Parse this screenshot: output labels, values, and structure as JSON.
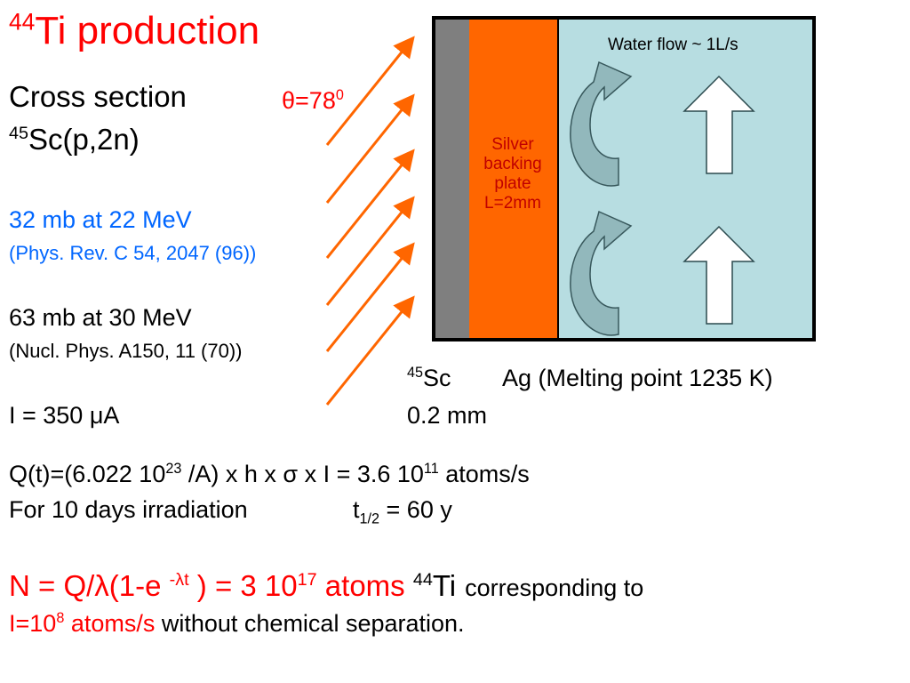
{
  "title": {
    "sup": "44",
    "text": "Ti production"
  },
  "cross_section": "Cross section",
  "reaction": {
    "sup": "45",
    "text": "Sc(p,2n)"
  },
  "angle": {
    "symbol": "θ",
    "text": "=78",
    "sup": "0"
  },
  "measurement1": {
    "value": "32 mb  at 22 MeV",
    "ref": "(Phys. Rev. C 54, 2047 (96))"
  },
  "measurement2": {
    "value": "63 mb  at 30 MeV",
    "ref": "(Nucl. Phys. A150, 11 (70))"
  },
  "current": {
    "prefix": "I = 350 ",
    "unit": "μA"
  },
  "target": {
    "water_label": "Water flow ~ 1L/s",
    "plate_lines": [
      "Silver",
      "backing",
      "plate",
      "L=2mm"
    ],
    "sc_sup": "45",
    "sc_text": "Sc",
    "ag_text": "Ag (Melting point 1235 K)",
    "thickness": "0.2 mm"
  },
  "production_rate": {
    "part1": "Q(t)=(6.022 10",
    "exp1": "23",
    "part2": " /A) x h x ",
    "sigma": "σ",
    "part3": " x I = 3.6 10",
    "exp2": "11",
    "part4": " atoms/s"
  },
  "irradiation": {
    "text": "For 10 days  irradiation",
    "half_prefix": "t",
    "half_sub": "1/2",
    "half_value": " = 60 y"
  },
  "result": {
    "part1": "N = Q/",
    "lambda": "λ",
    "part2": "(1-e ",
    "exp": "-λt",
    "part3": " ) = 3 10",
    "exp2": "17",
    "part4": "  atoms ",
    "ti_sup": "44",
    "ti_text": "Ti",
    "corresponding": "corresponding to"
  },
  "intensity": {
    "prefix": "I=10",
    "exp": "8",
    "red_text": " atoms/s",
    "black_text": " without chemical separation."
  },
  "colors": {
    "title_red": "#ff0000",
    "ref_blue": "#0066ff",
    "beam_orange": "#ff6600",
    "scandium_gray": "#7f7f7f",
    "silver_orange": "#ff6600",
    "water_blue": "#b7dde1",
    "plate_label": "#c00000"
  },
  "icons": [
    "beam-arrow-icon",
    "curved-flow-arrow-icon",
    "up-flow-arrow-icon"
  ]
}
